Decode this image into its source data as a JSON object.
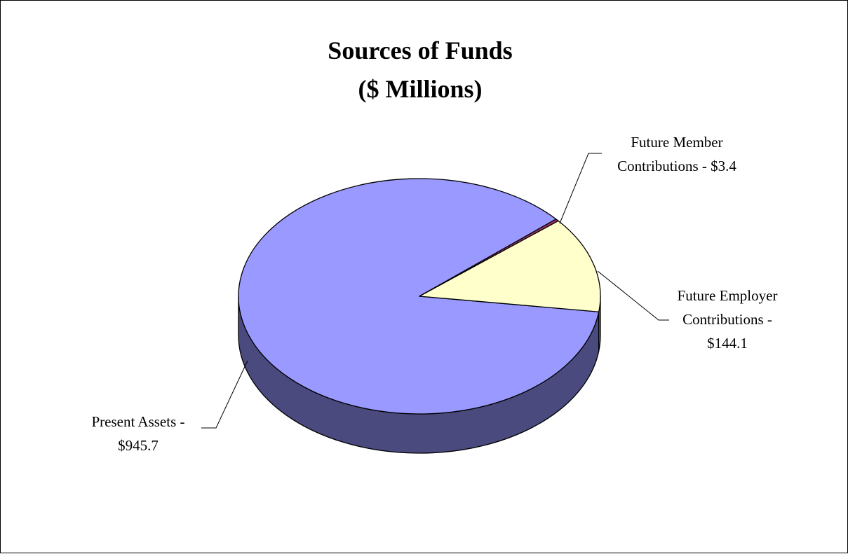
{
  "chart_data": {
    "type": "pie",
    "style": "3d",
    "title": [
      "Sources of Funds",
      "($ Millions)"
    ],
    "slices": [
      {
        "name": "Present Assets",
        "value": 945.7,
        "label_lines": [
          "Present Assets -",
          "$945.7"
        ],
        "color": "#9999ff",
        "side_color": "#4a4a7f"
      },
      {
        "name": "Future Member Contributions",
        "value": 3.4,
        "label_lines": [
          "Future Member",
          "Contributions - $3.4"
        ],
        "color": "#993366",
        "side_color": "#4d1a33"
      },
      {
        "name": "Future Employer Contributions",
        "value": 144.1,
        "label_lines": [
          "Future Employer",
          "Contributions -",
          "$144.1"
        ],
        "color": "#ffffcc",
        "side_color": "#807f66"
      }
    ]
  }
}
